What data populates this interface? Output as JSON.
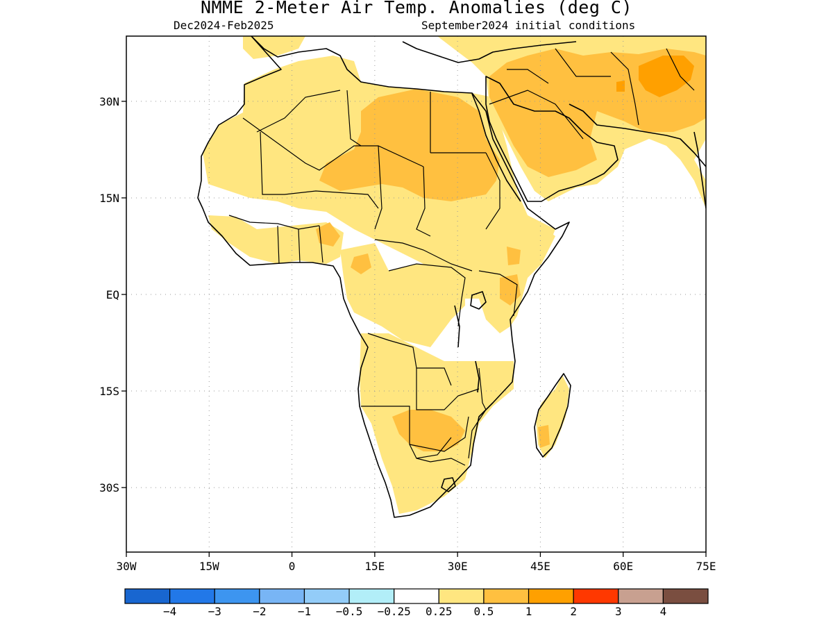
{
  "title": "NMME 2-Meter Air Temp. Anomalies (deg C)",
  "subtitle_left": "Dec2024-Feb2025",
  "subtitle_right": "September2024 initial conditions",
  "map": {
    "lon_range": [
      -30,
      75
    ],
    "lat_range": [
      -40,
      40
    ],
    "lat_ticks": [
      {
        "value": 30,
        "label": "30N"
      },
      {
        "value": 15,
        "label": "15N"
      },
      {
        "value": 0,
        "label": "EQ"
      },
      {
        "value": -15,
        "label": "15S"
      },
      {
        "value": -30,
        "label": "30S"
      }
    ],
    "lon_ticks": [
      {
        "value": -30,
        "label": "30W"
      },
      {
        "value": -15,
        "label": "15W"
      },
      {
        "value": 0,
        "label": "0"
      },
      {
        "value": 15,
        "label": "15E"
      },
      {
        "value": 30,
        "label": "30E"
      },
      {
        "value": 45,
        "label": "45E"
      },
      {
        "value": 60,
        "label": "60E"
      },
      {
        "value": 75,
        "label": "75E"
      }
    ],
    "grid": "dotted",
    "anomaly_regions": [
      {
        "name": "north-africa-warm",
        "level": "0.25-0.5"
      },
      {
        "name": "sahara-sahel-warm",
        "level": "0.5-1"
      },
      {
        "name": "arabia-warm",
        "level": "0.5-1"
      },
      {
        "name": "iran-afghanistan-warm",
        "level": "1-2"
      },
      {
        "name": "southern-africa-warm",
        "level": "0.25-0.5"
      },
      {
        "name": "madagascar-warm",
        "level": "0.25-0.5"
      }
    ]
  },
  "colorbar": {
    "colors": [
      "#1866d0",
      "#2278e8",
      "#3d95f0",
      "#78b5f5",
      "#93ccf8",
      "#b2eef8",
      "#ffffff",
      "#ffe680",
      "#ffc040",
      "#ffa000",
      "#ff3800",
      "#c8a090",
      "#7a4e40"
    ],
    "labels": [
      "−4",
      "−3",
      "−2",
      "−1",
      "−0.5",
      "−0.25",
      "0.25",
      "0.5",
      "1",
      "2",
      "3",
      "4"
    ]
  }
}
